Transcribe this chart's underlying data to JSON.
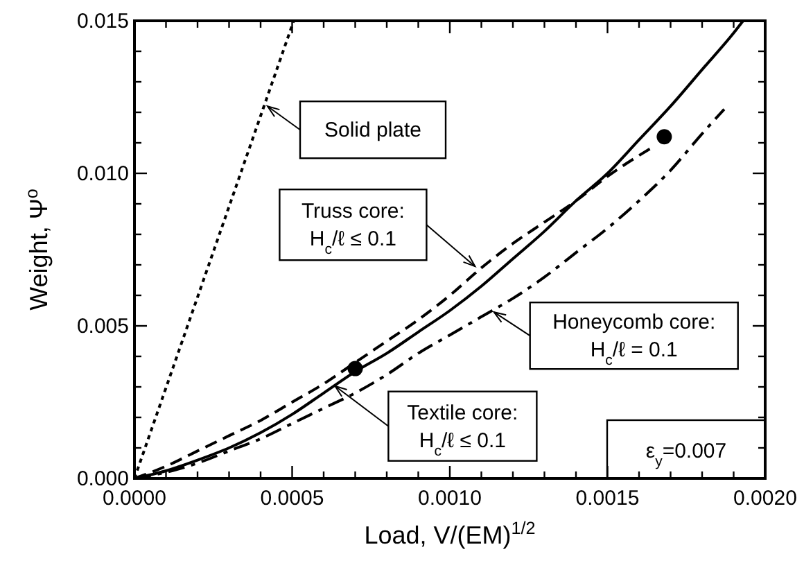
{
  "chart_data": {
    "type": "line",
    "xlabel": "Load, V/(EM)$^{1/2}$",
    "ylabel": "Weight, Ψ$^{o}$",
    "xlim": [
      0,
      0.002
    ],
    "ylim": [
      0,
      0.015
    ],
    "xticks": [
      {
        "value": 0,
        "label": "0.0000"
      },
      {
        "value": 0.0001,
        "label": null
      },
      {
        "value": 0.0002,
        "label": null
      },
      {
        "value": 0.0003,
        "label": null
      },
      {
        "value": 0.0004,
        "label": null
      },
      {
        "value": 0.0005,
        "label": "0.0005"
      },
      {
        "value": 0.0006,
        "label": null
      },
      {
        "value": 0.0007,
        "label": null
      },
      {
        "value": 0.0008,
        "label": null
      },
      {
        "value": 0.0009,
        "label": null
      },
      {
        "value": 0.001,
        "label": "0.0010"
      },
      {
        "value": 0.0011,
        "label": null
      },
      {
        "value": 0.0012,
        "label": null
      },
      {
        "value": 0.0013,
        "label": null
      },
      {
        "value": 0.0014,
        "label": null
      },
      {
        "value": 0.0015,
        "label": "0.0015"
      },
      {
        "value": 0.0016,
        "label": null
      },
      {
        "value": 0.0017,
        "label": null
      },
      {
        "value": 0.0018,
        "label": null
      },
      {
        "value": 0.0019,
        "label": null
      },
      {
        "value": 0.002,
        "label": "0.0020"
      }
    ],
    "yticks": [
      {
        "value": 0,
        "label": "0.000"
      },
      {
        "value": 0.001,
        "label": null
      },
      {
        "value": 0.002,
        "label": null
      },
      {
        "value": 0.003,
        "label": null
      },
      {
        "value": 0.004,
        "label": null
      },
      {
        "value": 0.005,
        "label": "0.005"
      },
      {
        "value": 0.006,
        "label": null
      },
      {
        "value": 0.007,
        "label": null
      },
      {
        "value": 0.008,
        "label": null
      },
      {
        "value": 0.009,
        "label": null
      },
      {
        "value": 0.01,
        "label": "0.010"
      },
      {
        "value": 0.011,
        "label": null
      },
      {
        "value": 0.012,
        "label": null
      },
      {
        "value": 0.013,
        "label": null
      },
      {
        "value": 0.014,
        "label": null
      },
      {
        "value": 0.015,
        "label": "0.015"
      }
    ],
    "grid": false,
    "series": [
      {
        "line_style": "dotted",
        "color": "#000000",
        "x": [
          0,
          0.000505
        ],
        "values": [
          0,
          0.015
        ]
      },
      {
        "line_style": "dashed",
        "color": "#000000",
        "x": [
          0,
          0.0001,
          0.0002,
          0.0003,
          0.0004,
          0.0005,
          0.0006,
          0.0007,
          0.0008,
          0.0009,
          0.001,
          0.0011,
          0.0012,
          0.0013,
          0.0014,
          0.0015,
          0.00165
        ],
        "values": [
          0,
          0.0004,
          0.0009,
          0.0014,
          0.0019,
          0.0025,
          0.0031,
          0.0038,
          0.0045,
          0.0052,
          0.006,
          0.0069,
          0.0077,
          0.0084,
          0.0091,
          0.0099,
          0.0109
        ]
      },
      {
        "line_style": "dashdot",
        "color": "#000000",
        "x": [
          0,
          0.0001,
          0.0002,
          0.0003,
          0.0004,
          0.0005,
          0.0006,
          0.0007,
          0.0008,
          0.0009,
          0.001,
          0.0011,
          0.0012,
          0.0013,
          0.0014,
          0.0015,
          0.0016,
          0.0017,
          0.0018,
          0.00187
        ],
        "values": [
          0,
          0.0002,
          0.0005,
          0.0009,
          0.0013,
          0.0018,
          0.0023,
          0.0028,
          0.0034,
          0.0041,
          0.0047,
          0.0053,
          0.0059,
          0.0066,
          0.0074,
          0.0082,
          0.0091,
          0.0101,
          0.0113,
          0.0121
        ]
      },
      {
        "line_style": "solid",
        "color": "#000000",
        "x": [
          0,
          0.0001,
          0.0002,
          0.0003,
          0.0004,
          0.0005,
          0.0006,
          0.0007,
          0.0008,
          0.0009,
          0.001,
          0.0011,
          0.0012,
          0.0013,
          0.0014,
          0.0015,
          0.0016,
          0.0017,
          0.0018,
          0.0019,
          0.00193
        ],
        "values": [
          0,
          0.00025,
          0.0006,
          0.001,
          0.0015,
          0.0021,
          0.0028,
          0.0035,
          0.0041,
          0.0048,
          0.0055,
          0.0063,
          0.0072,
          0.0081,
          0.0091,
          0.01,
          0.0111,
          0.0122,
          0.0134,
          0.0146,
          0.015
        ]
      },
      {
        "type": "scatter",
        "marker": "circle",
        "color": "#000000",
        "x": [
          0.0007,
          0.00168
        ],
        "values": [
          0.0036,
          0.0112
        ]
      }
    ],
    "annotations": [
      {
        "text": "Solid plate",
        "x": 0.000422,
        "y": 0.0122
      },
      {
        "text": "Truss core:\nH$_{c}$/ℓ ≤ 0.1",
        "x": 0.00108,
        "y": 0.00695
      },
      {
        "text": "Honeycomb core:\nH$_{c}$/ℓ = 0.1",
        "x": 0.00114,
        "y": 0.00545
      },
      {
        "text": "Textile core:\nH$_{c}$/ℓ ≤ 0.1",
        "x": 0.000636,
        "y": 0.00303
      },
      "ε$_{y}$=0.007"
    ]
  }
}
